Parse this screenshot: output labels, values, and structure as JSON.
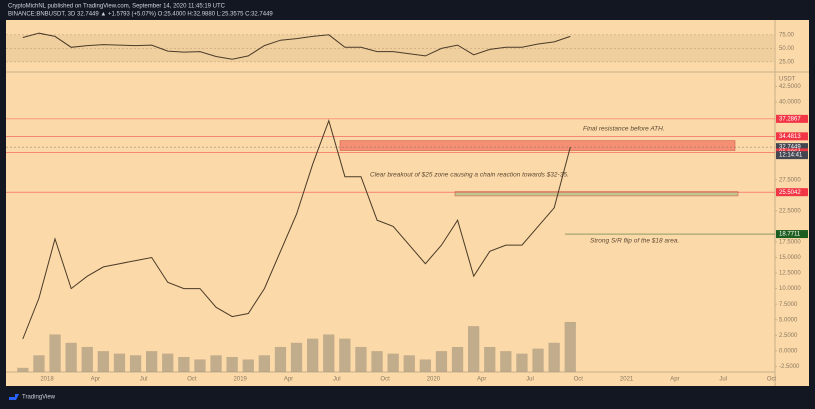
{
  "header": {
    "publisher": "CryptoMichNL published on TradingView.com, September 14, 2020 11:45:19 UTC",
    "symbol": "BINANCE:BNBUSDT, 3D 32.7449 ▲ +1.5793 (+5.07%) O:25.4000 H:32.9880 L:25.3575 C:32.7449"
  },
  "footer": {
    "brand": "TradingView"
  },
  "chart_data": {
    "type": "line",
    "categories": [
      "2017-11",
      "2017-12",
      "2018-01",
      "2018-02",
      "2018-03",
      "2018-04",
      "2018-05",
      "2018-06",
      "2018-07",
      "2018-08",
      "2018-09",
      "2018-10",
      "2018-11",
      "2018-12",
      "2019-01",
      "2019-02",
      "2019-03",
      "2019-04",
      "2019-05",
      "2019-06",
      "2019-07",
      "2019-08",
      "2019-09",
      "2019-10",
      "2019-11",
      "2019-12",
      "2020-01",
      "2020-02",
      "2020-03",
      "2020-04",
      "2020-05",
      "2020-06",
      "2020-07",
      "2020-08",
      "2020-09"
    ],
    "x_labels": [
      "2018",
      "Apr",
      "Jul",
      "Oct",
      "2019",
      "Apr",
      "Jul",
      "Oct",
      "2020",
      "Apr",
      "Jul",
      "Oct",
      "2021",
      "Apr",
      "Jul",
      "Oct"
    ],
    "series": [
      {
        "name": "BNBUSDT",
        "color": "#4a3b28",
        "values": [
          1.9,
          8.5,
          18,
          10,
          12,
          13.5,
          14,
          14.5,
          15,
          11,
          10,
          10,
          7,
          5.5,
          6,
          10,
          16,
          22,
          30,
          37,
          28,
          28,
          21,
          20,
          17,
          14,
          17,
          21,
          12,
          16,
          17,
          17,
          20,
          23,
          32.7449
        ]
      },
      {
        "name": "Volume",
        "color": "#a8987f",
        "axis": "y2",
        "values": [
          5,
          20,
          45,
          35,
          30,
          25,
          22,
          20,
          25,
          22,
          18,
          15,
          20,
          18,
          15,
          20,
          30,
          35,
          40,
          45,
          40,
          30,
          25,
          22,
          20,
          15,
          25,
          30,
          55,
          30,
          25,
          22,
          28,
          35,
          60
        ]
      },
      {
        "name": "RSI",
        "color": "#4a3b28",
        "axis": "y3",
        "values": [
          70,
          78,
          72,
          52,
          55,
          57,
          56,
          55,
          56,
          45,
          43,
          44,
          35,
          30,
          36,
          55,
          65,
          68,
          72,
          75,
          52,
          52,
          44,
          44,
          40,
          36,
          50,
          56,
          38,
          48,
          52,
          52,
          58,
          62,
          72
        ]
      }
    ],
    "ylim": [
      -3.4,
      44.5
    ],
    "yticks": [
      {
        "value": 42.5,
        "label": "42.5000"
      },
      {
        "value": 40,
        "label": "40.0000"
      },
      {
        "value": 27.5,
        "label": "27.5000"
      },
      {
        "value": 22.5,
        "label": "22.5000"
      },
      {
        "value": 17.5,
        "label": "17.5000"
      },
      {
        "value": 15,
        "label": "15.0000"
      },
      {
        "value": 12.5,
        "label": "12.5000"
      },
      {
        "value": 10,
        "label": "10.0000"
      },
      {
        "value": 7.5,
        "label": "7.5000"
      },
      {
        "value": 5,
        "label": "5.0000"
      },
      {
        "value": 2.5,
        "label": "2.5000"
      },
      {
        "value": 0,
        "label": "0.0000"
      },
      {
        "value": -2.5,
        "label": "-2.5000"
      }
    ],
    "y_unit": "USDT",
    "y2lim": [
      0,
      100
    ],
    "y3lim": [
      10,
      95
    ],
    "y3ticks": [
      {
        "value": 75,
        "label": "75.00"
      },
      {
        "value": 50,
        "label": "50.00"
      },
      {
        "value": 25,
        "label": "25.00"
      }
    ],
    "price_lines": [
      {
        "value": 37.2867,
        "color": "#f23645"
      },
      {
        "value": 34.4813,
        "color": "#f23645"
      },
      {
        "value": 32.7449,
        "color": "#434651"
      },
      {
        "value": 31.8864,
        "color": "#f23645"
      },
      {
        "value": 25.5042,
        "color": "#f23645"
      },
      {
        "value": 18.7711,
        "color": "#1b5e20"
      }
    ],
    "countdown": "12:14:41",
    "zones": [
      {
        "from": 32.2,
        "to": 33.8,
        "color": "#f4836a"
      },
      {
        "from": 24.9,
        "to": 25.6,
        "color": "#b9c58a"
      }
    ],
    "annotations": [
      "Final resistance before ATH.",
      "Clear breakout of $25 zone causing a chain reaction towards $32-35.",
      "Strong S/R flip of the $18 area."
    ]
  }
}
